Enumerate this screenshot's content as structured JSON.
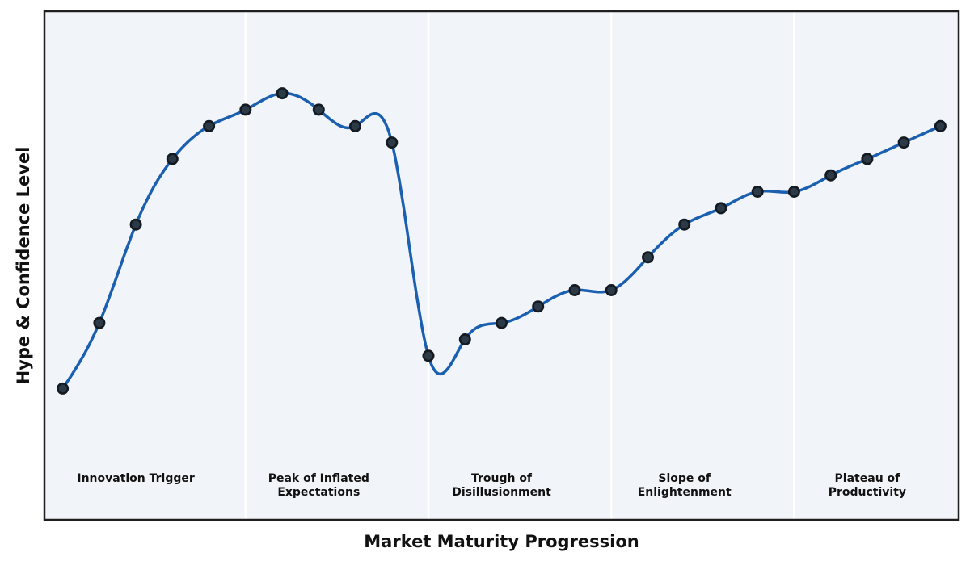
{
  "chart_data": {
    "type": "line",
    "title": "",
    "xlabel": "Market Maturity Progression",
    "ylabel": "Hype & Confidence Level",
    "x": [
      0,
      1,
      2,
      3,
      4,
      5,
      6,
      7,
      8,
      9,
      10,
      11,
      12,
      13,
      14,
      15,
      16,
      17,
      18,
      19,
      20,
      21,
      22,
      23,
      24
    ],
    "values": [
      10,
      30,
      60,
      80,
      90,
      95,
      100,
      95,
      90,
      85,
      20,
      25,
      30,
      35,
      40,
      40,
      50,
      60,
      65,
      70,
      70,
      75,
      80,
      85,
      90
    ],
    "xlim": [
      -0.5,
      24.5
    ],
    "ylim": [
      -30,
      125
    ],
    "grid": false,
    "legend": "none",
    "ticks": "none",
    "smoothing": "cubic-spline",
    "phases": [
      {
        "label": "Innovation Trigger",
        "center_x": 2
      },
      {
        "label": "Peak of Inflated\nExpectations",
        "center_x": 7
      },
      {
        "label": "Trough of\nDisillusionment",
        "center_x": 12
      },
      {
        "label": "Slope of\nEnlightenment",
        "center_x": 17
      },
      {
        "label": "Plateau of\nProductivity",
        "center_x": 22
      }
    ],
    "phase_boundaries_x": [
      5,
      10,
      15,
      20
    ],
    "colors": {
      "line": "#1a5fb0",
      "marker_fill": "#2c3a47",
      "marker_edge": "#141a21",
      "plot_background": "#f1f4f9",
      "phase_boundary": "#ffffff",
      "spine": "#1f1f1f",
      "text": "#111111",
      "figure_background": "#ffffff"
    }
  }
}
